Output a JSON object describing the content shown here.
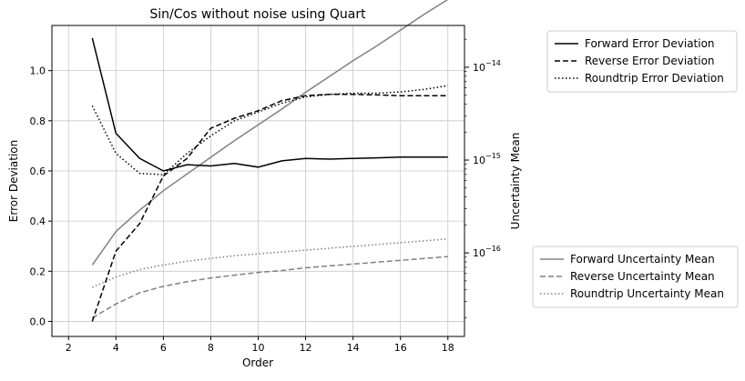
{
  "chart_data": {
    "type": "line",
    "title": "Sin/Cos without noise using Quart",
    "xlabel": "Order",
    "ylabel_left": "Error Deviation",
    "ylabel_right": "Uncertainty Mean",
    "xlim": [
      1.3,
      18.7
    ],
    "xticks": [
      2,
      4,
      6,
      8,
      10,
      12,
      14,
      16,
      18
    ],
    "ylim_left": [
      -0.06,
      1.18
    ],
    "yticks_left": [
      0.0,
      0.2,
      0.4,
      0.6,
      0.8,
      1.0
    ],
    "ylim_right_log10": [
      -16.9,
      -13.55
    ],
    "yticks_right": [
      {
        "exp": -16,
        "label": "10",
        "sup": "−16"
      },
      {
        "exp": -15,
        "label": "10",
        "sup": "−15"
      },
      {
        "exp": -14,
        "label": "10",
        "sup": "−14"
      }
    ],
    "right_scale": "log",
    "grid": true,
    "legend_error_placement": "upper-right outside",
    "legend_uncertainty_placement": "lower-right outside",
    "x": [
      3,
      4,
      5,
      6,
      7,
      8,
      9,
      10,
      11,
      12,
      13,
      14,
      15,
      16,
      17,
      18
    ],
    "error_series": [
      {
        "name": "Forward Error Deviation",
        "style": "solid",
        "color": "#000000",
        "values": [
          1.13,
          0.75,
          0.65,
          0.6,
          0.625,
          0.62,
          0.63,
          0.615,
          0.64,
          0.65,
          0.647,
          0.65,
          0.652,
          0.655,
          0.655,
          0.655
        ]
      },
      {
        "name": "Reverse Error Deviation",
        "style": "dashed",
        "color": "#000000",
        "values": [
          0.0,
          0.28,
          0.39,
          0.58,
          0.65,
          0.77,
          0.81,
          0.84,
          0.88,
          0.9,
          0.905,
          0.905,
          0.903,
          0.9,
          0.9,
          0.9
        ]
      },
      {
        "name": "Roundtrip Error Deviation",
        "style": "dotted",
        "color": "#000000",
        "values": [
          0.86,
          0.67,
          0.59,
          0.585,
          0.67,
          0.74,
          0.8,
          0.835,
          0.87,
          0.895,
          0.905,
          0.91,
          0.91,
          0.915,
          0.925,
          0.94
        ]
      }
    ],
    "uncertainty_series": [
      {
        "name": "Forward Uncertainty Mean",
        "style": "solid",
        "color": "#808080",
        "log10_values": [
          -16.13,
          -15.77,
          -15.54,
          -15.33,
          -15.15,
          -14.97,
          -14.79,
          -14.62,
          -14.45,
          -14.27,
          -14.1,
          -13.93,
          -13.77,
          -13.6,
          -13.43,
          -13.27
        ]
      },
      {
        "name": "Reverse Uncertainty Mean",
        "style": "dashed",
        "color": "#808080",
        "log10_values": [
          -16.7,
          -16.55,
          -16.43,
          -16.36,
          -16.31,
          -16.27,
          -16.24,
          -16.21,
          -16.19,
          -16.16,
          -16.14,
          -16.12,
          -16.1,
          -16.08,
          -16.06,
          -16.04
        ]
      },
      {
        "name": "Roundtrip Uncertainty Mean",
        "style": "dotted",
        "color": "#808080",
        "log10_values": [
          -16.37,
          -16.26,
          -16.18,
          -16.13,
          -16.09,
          -16.06,
          -16.03,
          -16.01,
          -15.99,
          -15.97,
          -15.95,
          -15.93,
          -15.91,
          -15.89,
          -15.87,
          -15.85
        ]
      }
    ]
  }
}
